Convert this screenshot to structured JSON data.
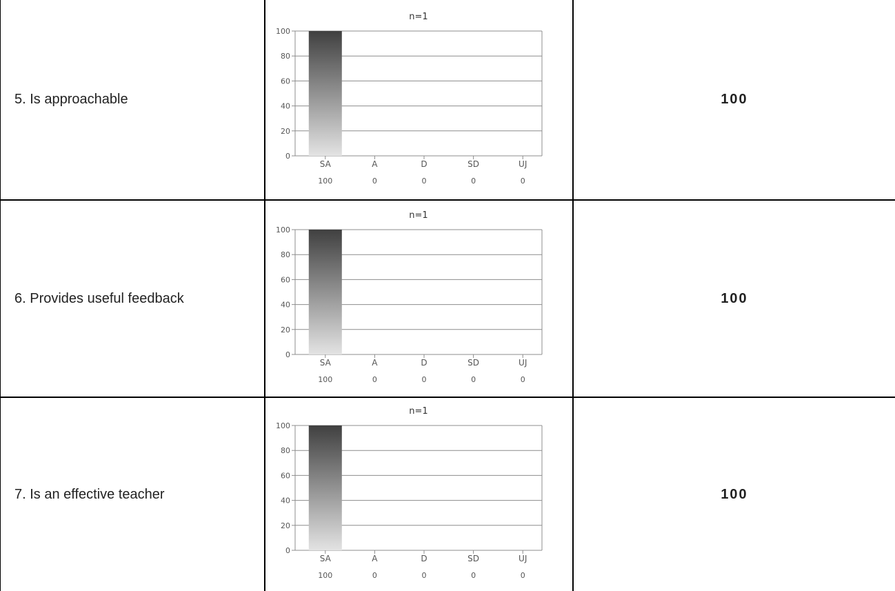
{
  "rows": [
    {
      "question": "5. Is approachable",
      "score": "100",
      "chart": {
        "n_label": "n=1",
        "yticks": [
          "0",
          "20",
          "40",
          "60",
          "80",
          "100"
        ],
        "categories": [
          "SA",
          "A",
          "D",
          "SD",
          "UJ"
        ],
        "values": [
          100,
          0,
          0,
          0,
          0
        ],
        "value_labels": [
          "100",
          "0",
          "0",
          "0",
          "0"
        ]
      }
    },
    {
      "question": "6. Provides useful feedback",
      "score": "100",
      "chart": {
        "n_label": "n=1",
        "yticks": [
          "0",
          "20",
          "40",
          "60",
          "80",
          "100"
        ],
        "categories": [
          "SA",
          "A",
          "D",
          "SD",
          "UJ"
        ],
        "values": [
          100,
          0,
          0,
          0,
          0
        ],
        "value_labels": [
          "100",
          "0",
          "0",
          "0",
          "0"
        ]
      }
    },
    {
      "question": "7. Is an effective teacher",
      "score": "100",
      "chart": {
        "n_label": "n=1",
        "yticks": [
          "0",
          "20",
          "40",
          "60",
          "80",
          "100"
        ],
        "categories": [
          "SA",
          "A",
          "D",
          "SD",
          "UJ"
        ],
        "values": [
          100,
          0,
          0,
          0,
          0
        ],
        "value_labels": [
          "100",
          "0",
          "0",
          "0",
          "0"
        ]
      }
    }
  ],
  "chart_data": [
    {
      "type": "bar",
      "title": "n=1",
      "categories": [
        "SA",
        "A",
        "D",
        "SD",
        "UJ"
      ],
      "values": [
        100,
        0,
        0,
        0,
        0
      ],
      "ylim": [
        0,
        100
      ],
      "grid": true,
      "xlabel": "",
      "ylabel": ""
    },
    {
      "type": "bar",
      "title": "n=1",
      "categories": [
        "SA",
        "A",
        "D",
        "SD",
        "UJ"
      ],
      "values": [
        100,
        0,
        0,
        0,
        0
      ],
      "ylim": [
        0,
        100
      ],
      "grid": true,
      "xlabel": "",
      "ylabel": ""
    },
    {
      "type": "bar",
      "title": "n=1",
      "categories": [
        "SA",
        "A",
        "D",
        "SD",
        "UJ"
      ],
      "values": [
        100,
        0,
        0,
        0,
        0
      ],
      "ylim": [
        0,
        100
      ],
      "grid": true,
      "xlabel": "",
      "ylabel": ""
    }
  ]
}
